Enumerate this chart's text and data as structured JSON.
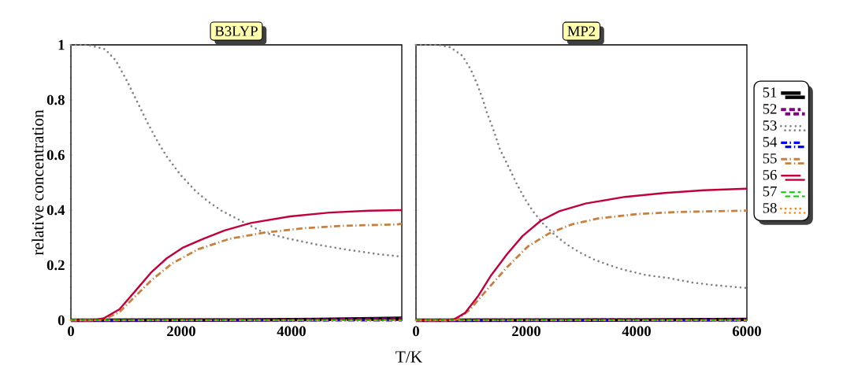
{
  "chart_data": [
    {
      "type": "line",
      "title": "B3LYP",
      "ylabel": "relative concentration",
      "xlabel": "T/K",
      "xlim": [
        0,
        6000
      ],
      "ylim": [
        0,
        1
      ],
      "xticks": [
        0,
        2000,
        4000,
        {
          "value": 6000,
          "label": null
        }
      ],
      "yticks": [
        0,
        0.2,
        0.4,
        0.6,
        0.8,
        1
      ],
      "legend": false,
      "grid": false,
      "series": [
        {
          "color": "#000000",
          "line_style": "solid",
          "x": [
            0,
            3000,
            4500,
            6000
          ],
          "values": [
            0,
            0.001,
            0.003,
            0.007
          ]
        },
        {
          "color": "#800080",
          "line_style": "dashed",
          "x": [
            0,
            3000,
            4500,
            6000
          ],
          "values": [
            0,
            0.001,
            0.002,
            0.005
          ]
        },
        {
          "color": "#808080",
          "line_style": "dotted",
          "x": [
            0,
            300,
            619,
            810,
            1014,
            1200,
            1386,
            1586,
            1733,
            1986,
            2271,
            2490,
            2729,
            3095,
            3476,
            3905,
            4452,
            5014,
            5571,
            6000
          ],
          "values": [
            1,
            1,
            0.984,
            0.944,
            0.87,
            0.794,
            0.718,
            0.644,
            0.596,
            0.528,
            0.467,
            0.431,
            0.398,
            0.36,
            0.32,
            0.298,
            0.275,
            0.256,
            0.24,
            0.231
          ]
        },
        {
          "color": "#0000ff",
          "line_style": "dashdot",
          "x": [
            0,
            6000
          ],
          "values": [
            0,
            0
          ]
        },
        {
          "color": "#c8803e",
          "line_style": "dashdot",
          "x": [
            0,
            450,
            643,
            881,
            1167,
            1452,
            1833,
            2310,
            2881,
            3500,
            4214,
            4929,
            5905,
            6000
          ],
          "values": [
            0,
            0,
            0.007,
            0.03,
            0.087,
            0.144,
            0.206,
            0.258,
            0.296,
            0.318,
            0.334,
            0.343,
            0.348,
            0.35
          ]
        },
        {
          "color": "#c0003c",
          "line_style": "solid",
          "x": [
            0,
            400,
            595,
            881,
            1167,
            1452,
            1738,
            2024,
            2405,
            2786,
            3262,
            3976,
            4690,
            5405,
            6000
          ],
          "values": [
            0,
            0,
            0.007,
            0.04,
            0.106,
            0.173,
            0.225,
            0.263,
            0.296,
            0.326,
            0.353,
            0.377,
            0.391,
            0.398,
            0.4
          ]
        },
        {
          "color": "#00cc00",
          "line_style": "dashed",
          "x": [
            0,
            6000
          ],
          "values": [
            0,
            0
          ]
        },
        {
          "color": "#ff8000",
          "line_style": "dotted",
          "x": [
            0,
            6000
          ],
          "values": [
            0,
            0
          ]
        }
      ]
    },
    {
      "type": "line",
      "title": "MP2",
      "xlim": [
        0,
        6000
      ],
      "ylim": [
        0,
        1
      ],
      "xticks": [
        0,
        2000,
        4000,
        6000
      ],
      "yticks": [
        0,
        0.2,
        0.4,
        0.6,
        0.8,
        1
      ],
      "tick_labels": "x",
      "legend": "right",
      "grid": false,
      "series": [
        {
          "name": "51",
          "color": "#000000",
          "line_style": "solid",
          "x": [
            0,
            4000,
            6000
          ],
          "values": [
            0,
            0.001,
            0.003
          ]
        },
        {
          "name": "52",
          "color": "#800080",
          "line_style": "dashed",
          "x": [
            0,
            6000
          ],
          "values": [
            0,
            0.002
          ]
        },
        {
          "name": "53",
          "color": "#808080",
          "line_style": "dotted",
          "x": [
            0,
            400,
            624,
            843,
            995,
            1105,
            1205,
            1290,
            1390,
            1524,
            1652,
            1838,
            1971,
            2124,
            2305,
            2505,
            2729,
            2971,
            3224,
            3490,
            3757,
            4171,
            4590,
            5010,
            5429,
            6000
          ],
          "values": [
            1,
            1,
            0.991,
            0.96,
            0.91,
            0.859,
            0.806,
            0.751,
            0.7,
            0.62,
            0.568,
            0.491,
            0.442,
            0.395,
            0.351,
            0.312,
            0.276,
            0.246,
            0.221,
            0.201,
            0.184,
            0.164,
            0.153,
            0.137,
            0.127,
            0.117
          ]
        },
        {
          "name": "54",
          "color": "#0000ff",
          "line_style": "dashdot",
          "x": [
            0,
            6000
          ],
          "values": [
            0,
            0
          ]
        },
        {
          "name": "55",
          "color": "#c8803e",
          "line_style": "dashdot",
          "x": [
            0,
            600,
            767,
            981,
            1267,
            1648,
            2029,
            2410,
            2838,
            3314,
            4029,
            4743,
            5457,
            6000
          ],
          "values": [
            0,
            0,
            0.004,
            0.04,
            0.106,
            0.192,
            0.268,
            0.315,
            0.349,
            0.37,
            0.386,
            0.393,
            0.396,
            0.398
          ]
        },
        {
          "name": "56",
          "color": "#c0003c",
          "line_style": "solid",
          "x": [
            0,
            500,
            695,
            886,
            1124,
            1362,
            1648,
            1933,
            2267,
            2600,
            3076,
            3790,
            4505,
            5219,
            6000
          ],
          "values": [
            0,
            0,
            0.004,
            0.026,
            0.087,
            0.163,
            0.239,
            0.306,
            0.362,
            0.396,
            0.424,
            0.448,
            0.462,
            0.472,
            0.478
          ]
        },
        {
          "name": "57",
          "color": "#00cc00",
          "line_style": "dashed",
          "x": [
            0,
            6000
          ],
          "values": [
            0,
            0
          ]
        },
        {
          "name": "58",
          "color": "#ff8000",
          "line_style": "dotted",
          "x": [
            0,
            6000
          ],
          "values": [
            0,
            0
          ]
        }
      ]
    }
  ]
}
